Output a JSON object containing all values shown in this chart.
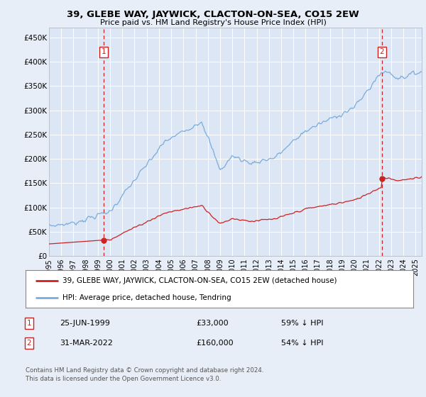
{
  "title": "39, GLEBE WAY, JAYWICK, CLACTON-ON-SEA, CO15 2EW",
  "subtitle": "Price paid vs. HM Land Registry's House Price Index (HPI)",
  "background_color": "#e8eef7",
  "plot_bg_color": "#dce6f5",
  "legend_entry1": "39, GLEBE WAY, JAYWICK, CLACTON-ON-SEA, CO15 2EW (detached house)",
  "legend_entry2": "HPI: Average price, detached house, Tendring",
  "annotation1_label": "1",
  "annotation1_date": "25-JUN-1999",
  "annotation1_price": "£33,000",
  "annotation1_hpi": "59% ↓ HPI",
  "annotation2_label": "2",
  "annotation2_date": "31-MAR-2022",
  "annotation2_price": "£160,000",
  "annotation2_hpi": "54% ↓ HPI",
  "footer": "Contains HM Land Registry data © Crown copyright and database right 2024.\nThis data is licensed under the Open Government Licence v3.0.",
  "ylim": [
    0,
    470000
  ],
  "yticks": [
    0,
    50000,
    100000,
    150000,
    200000,
    250000,
    300000,
    350000,
    400000,
    450000
  ],
  "ytick_labels": [
    "£0",
    "£50K",
    "£100K",
    "£150K",
    "£200K",
    "£250K",
    "£300K",
    "£350K",
    "£400K",
    "£450K"
  ],
  "hpi_color": "#7aacdc",
  "sale_color": "#cc2222",
  "marker1_x": 1999.48,
  "marker1_y": 33000,
  "marker2_x": 2022.25,
  "marker2_y": 160000,
  "vline1_x": 1999.48,
  "vline2_x": 2022.25,
  "xlim_start": 1995.0,
  "xlim_end": 2025.5
}
